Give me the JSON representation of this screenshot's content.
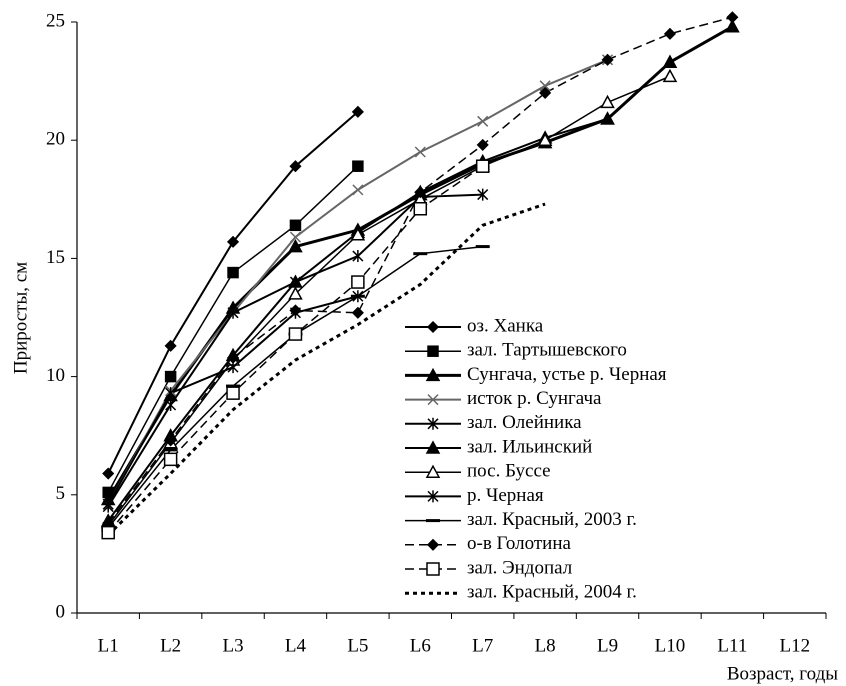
{
  "chart_data": {
    "type": "line",
    "y_label": "Приросты, см",
    "x_label": "Возраст, годы",
    "categories": [
      "L1",
      "L2",
      "L3",
      "L4",
      "L5",
      "L6",
      "L7",
      "L8",
      "L9",
      "L10",
      "L11",
      "L12"
    ],
    "ylim": [
      0,
      25
    ],
    "yticks": [
      0,
      5,
      10,
      15,
      20,
      25
    ],
    "series": [
      {
        "name": "оз. Ханка",
        "color": "#000000",
        "marker": "diamond",
        "dash": "solid",
        "width": 2,
        "values": [
          5.9,
          11.3,
          15.7,
          18.9,
          21.2,
          null,
          null,
          null,
          null,
          null,
          null,
          null
        ]
      },
      {
        "name": "зал. Тартышевского",
        "color": "#000000",
        "marker": "square",
        "dash": "solid",
        "width": 1.5,
        "values": [
          5.1,
          10.0,
          14.4,
          16.4,
          18.9,
          null,
          null,
          null,
          null,
          null,
          null,
          null
        ]
      },
      {
        "name": "Сунгача, устье р. Черная",
        "color": "#000000",
        "marker": "triangle",
        "dash": "solid",
        "width": 3,
        "values": [
          4.8,
          9.2,
          12.9,
          15.5,
          16.2,
          17.7,
          19.0,
          19.9,
          20.9,
          23.3,
          24.8,
          null
        ]
      },
      {
        "name": "исток р. Сунгача",
        "color": "#666666",
        "marker": "x",
        "dash": "solid",
        "width": 2,
        "values": [
          4.6,
          9.4,
          12.7,
          15.9,
          17.9,
          19.5,
          20.8,
          22.3,
          23.4,
          null,
          null,
          null
        ]
      },
      {
        "name": "зал. Олейника",
        "color": "#000000",
        "marker": "asterisk",
        "dash": "solid",
        "width": 2,
        "values": [
          4.5,
          8.8,
          12.7,
          14.0,
          15.1,
          17.6,
          17.7,
          null,
          null,
          null,
          null,
          null
        ]
      },
      {
        "name": "зал. Ильинский",
        "color": "#000000",
        "marker": "triangle",
        "dash": "solid",
        "width": 2,
        "values": [
          3.9,
          7.5,
          10.9,
          14.0,
          16.1,
          17.8,
          19.1,
          20.1,
          20.9,
          23.3,
          24.8,
          null
        ]
      },
      {
        "name": "пос. Буссе",
        "color": "#000000",
        "marker": "triangle-open",
        "dash": "solid",
        "width": 1.5,
        "values": [
          3.7,
          7.2,
          10.7,
          13.5,
          16.0,
          17.5,
          18.9,
          20.0,
          21.6,
          22.7,
          null,
          null
        ]
      },
      {
        "name": "р. Черная",
        "color": "#000000",
        "marker": "asterisk",
        "dash": "solid",
        "width": 2,
        "values": [
          4.6,
          9.3,
          10.4,
          12.7,
          13.4,
          null,
          null,
          null,
          null,
          null,
          null,
          null
        ]
      },
      {
        "name": "зал. Красный, 2003 г.",
        "color": "#000000",
        "marker": "hline",
        "dash": "solid",
        "width": 1.5,
        "values": [
          3.6,
          6.9,
          9.6,
          11.8,
          13.4,
          15.2,
          15.5,
          null,
          null,
          null,
          null,
          null
        ]
      },
      {
        "name": "о-в Голотина",
        "color": "#000000",
        "marker": "diamond",
        "dash": "dashed",
        "width": 1.5,
        "values": [
          3.8,
          7.3,
          10.8,
          12.8,
          12.7,
          17.8,
          19.8,
          22.0,
          23.4,
          24.5,
          25.2,
          null
        ]
      },
      {
        "name": "зал. Эндопал",
        "color": "#000000",
        "marker": "square-open",
        "dash": "dashed",
        "width": 1.5,
        "values": [
          3.4,
          6.5,
          9.3,
          11.8,
          14.0,
          17.1,
          18.9,
          null,
          null,
          null,
          null,
          null
        ]
      },
      {
        "name": "зал. Красный, 2004 г.",
        "color": "#000000",
        "marker": "none",
        "dash": "dotted",
        "width": 3,
        "values": [
          3.3,
          5.9,
          8.6,
          10.7,
          12.2,
          13.9,
          16.4,
          17.3,
          null,
          null,
          null,
          null
        ]
      }
    ]
  }
}
